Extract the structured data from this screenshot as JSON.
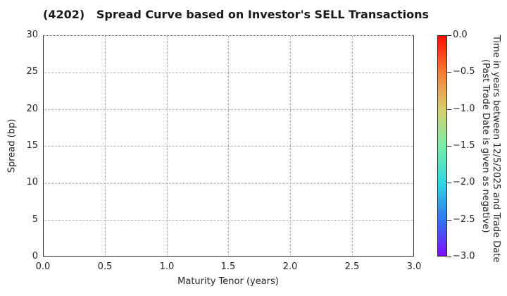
{
  "title": "(4202)   Spread Curve based on Investor's SELL Transactions",
  "chart_data": {
    "type": "scatter",
    "title": "(4202)   Spread Curve based on Investor's SELL Transactions",
    "xlabel": "Maturity Tenor (years)",
    "ylabel": "Spread (bp)",
    "xlim": [
      0.0,
      3.0
    ],
    "ylim": [
      0,
      30
    ],
    "x_ticks": [
      "0.0",
      "0.5",
      "1.0",
      "1.5",
      "2.0",
      "2.5",
      "3.0"
    ],
    "y_ticks": [
      "0",
      "5",
      "10",
      "15",
      "20",
      "25",
      "30"
    ],
    "grid": true,
    "legend_position": "none",
    "points": [],
    "colorbar": {
      "ticks": [
        "0.0",
        "−0.5",
        "−1.0",
        "−1.5",
        "−2.0",
        "−2.5",
        "−3.0"
      ],
      "range": [
        0.0,
        -3.0
      ],
      "label_line1": "Time in years between 12/5/2025 and Trade Date",
      "label_line2": "(Past Trade Date is given as negative)",
      "gradient_stops": [
        {
          "value": 0.0,
          "color": "#fc0d00"
        },
        {
          "value": -0.5,
          "color": "#f87d32"
        },
        {
          "value": -1.0,
          "color": "#d8cf6e"
        },
        {
          "value": -1.5,
          "color": "#79eda6"
        },
        {
          "value": -2.0,
          "color": "#2fd8e2"
        },
        {
          "value": -2.5,
          "color": "#2e77f2"
        },
        {
          "value": -3.0,
          "color": "#7d0dff"
        }
      ]
    }
  }
}
